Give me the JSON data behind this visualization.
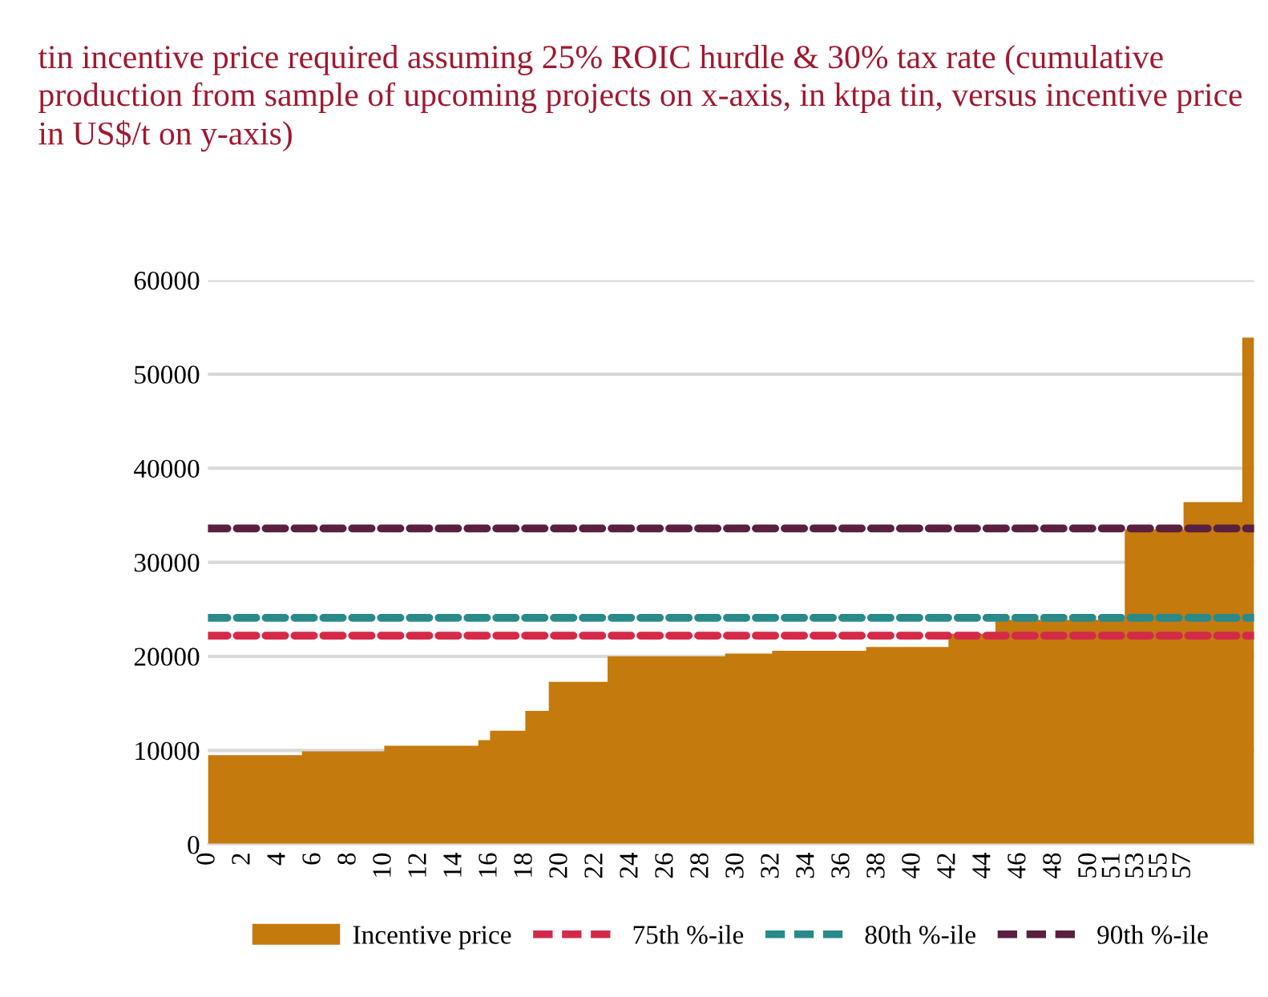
{
  "chart_data": {
    "type": "area",
    "title": "tin incentive price required assuming 25% ROIC hurdle & 30% tax rate (cumulative production from sample of upcoming projects on x-axis, in ktpa tin, versus incentive price in US$/t on y-axis)",
    "categories": [
      "0",
      null,
      null,
      "2",
      null,
      null,
      "4",
      null,
      null,
      "6",
      null,
      null,
      "8",
      null,
      null,
      "10",
      null,
      null,
      "12",
      null,
      null,
      "14",
      null,
      null,
      "16",
      null,
      null,
      "18",
      null,
      null,
      "20",
      null,
      null,
      "22",
      null,
      null,
      "24",
      null,
      null,
      "26",
      null,
      null,
      "28",
      null,
      null,
      "30",
      null,
      null,
      "32",
      null,
      null,
      "34",
      null,
      null,
      "36",
      null,
      null,
      "38",
      null,
      null,
      "40",
      null,
      null,
      "42",
      null,
      null,
      "44",
      null,
      null,
      "46",
      null,
      null,
      "48",
      null,
      null,
      "50",
      null,
      "51",
      null,
      "53",
      null,
      "55",
      null,
      "57",
      null,
      null,
      null,
      null,
      null,
      null
    ],
    "series": [
      {
        "name": "Incentive price",
        "color": "#c47a0c",
        "values": [
          9500,
          9500,
          9500,
          9500,
          9500,
          9500,
          9500,
          9500,
          9500,
          9900,
          9900,
          9900,
          9900,
          9900,
          9900,
          9900,
          10500,
          10500,
          10500,
          10500,
          10500,
          10500,
          10500,
          10500,
          11100,
          12100,
          12100,
          12100,
          14200,
          14200,
          17300,
          17300,
          17300,
          17300,
          17300,
          20000,
          20000,
          20000,
          20000,
          20000,
          20000,
          20000,
          20000,
          20000,
          20000,
          20300,
          20300,
          20300,
          20300,
          20600,
          20600,
          20600,
          20600,
          20600,
          20600,
          20600,
          20600,
          21000,
          21000,
          21000,
          21000,
          21000,
          21000,
          21000,
          22400,
          22400,
          22400,
          22400,
          23900,
          23900,
          23900,
          23900,
          23900,
          23900,
          23900,
          23900,
          23900,
          23900,
          23900,
          33500,
          33500,
          33500,
          33500,
          33500,
          36400,
          36400,
          36400,
          36400,
          36400,
          53900
        ]
      }
    ],
    "ref_lines": [
      {
        "axis": "y",
        "value": 22200,
        "label": "75th %-ile",
        "color": "#d42a4a",
        "line_style": "dashed"
      },
      {
        "axis": "y",
        "value": 24100,
        "label": "80th %-ile",
        "color": "#2a8a8a",
        "line_style": "dashed"
      },
      {
        "axis": "y",
        "value": 33600,
        "label": "90th %-ile",
        "color": "#5a2040",
        "line_style": "dashed"
      }
    ],
    "ylim": [
      0,
      60000
    ],
    "yticks": [
      0,
      10000,
      20000,
      30000,
      40000,
      50000,
      60000
    ],
    "grid": "y",
    "legend": "bottom"
  }
}
